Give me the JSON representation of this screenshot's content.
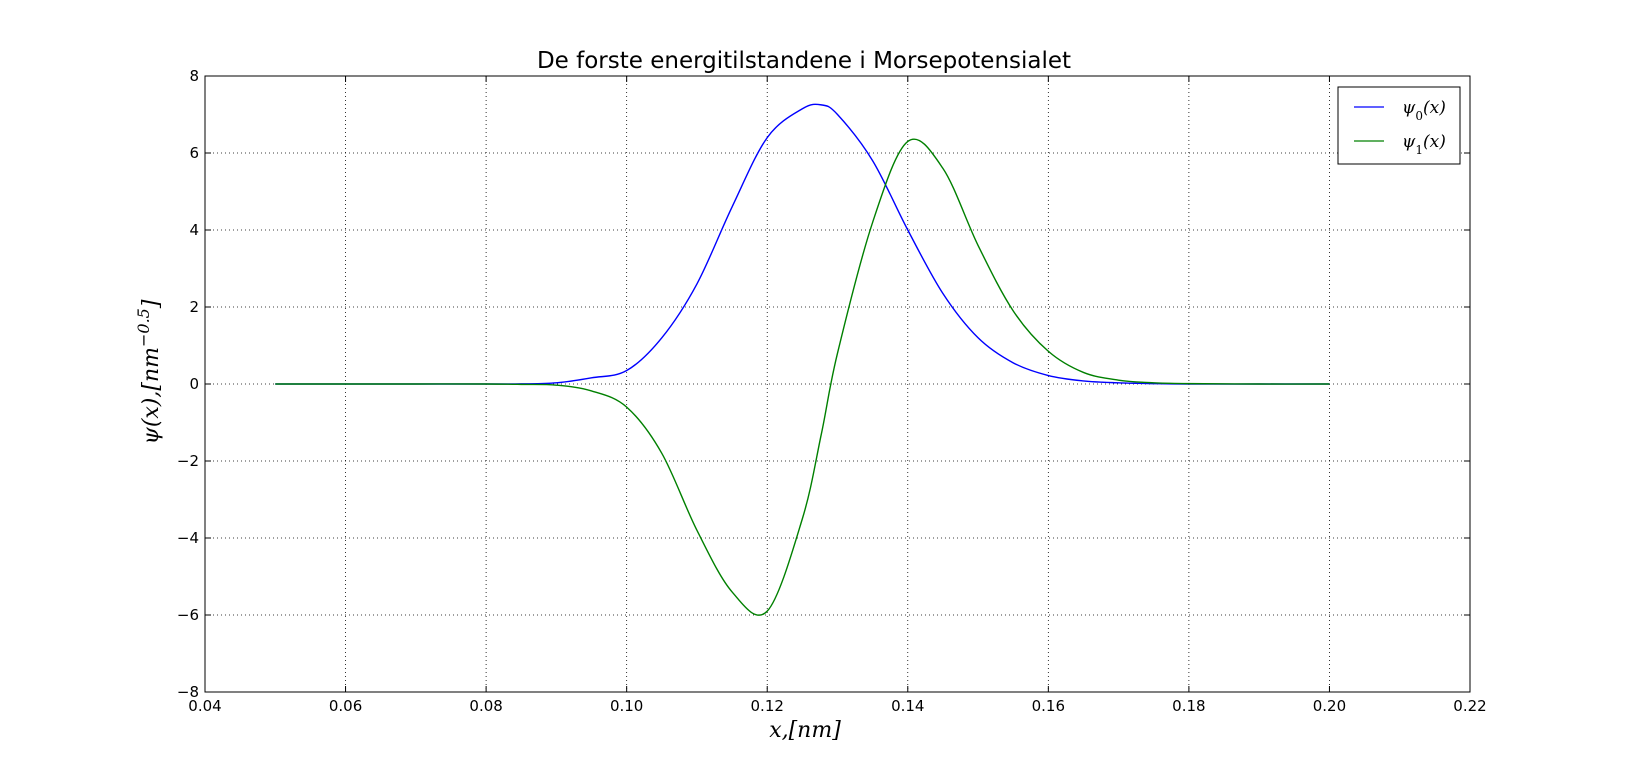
{
  "chart_data": {
    "type": "line",
    "title": "De forste energitilstandene i Morsepotensialet",
    "xlabel": "x,[nm]",
    "ylabel": "ψ(x),[nm^−0.5]",
    "ylabel_parts": {
      "base": "ψ(x),[nm",
      "exponent": "−0.5",
      "close": "]"
    },
    "xlim": [
      0.04,
      0.22
    ],
    "ylim": [
      -8,
      8
    ],
    "xticks": [
      0.04,
      0.06,
      0.08,
      0.1,
      0.12,
      0.14,
      0.16,
      0.18,
      0.2,
      0.22
    ],
    "xtick_labels": [
      "0.04",
      "0.06",
      "0.08",
      "0.10",
      "0.12",
      "0.14",
      "0.16",
      "0.18",
      "0.20",
      "0.22"
    ],
    "yticks": [
      -8,
      -6,
      -4,
      -2,
      0,
      2,
      4,
      6,
      8
    ],
    "ytick_labels": [
      "−8",
      "−6",
      "−4",
      "−2",
      "0",
      "2",
      "4",
      "6",
      "8"
    ],
    "grid": true,
    "legend_position": "top-right",
    "x": [
      0.05,
      0.06,
      0.07,
      0.08,
      0.085,
      0.09,
      0.095,
      0.1,
      0.105,
      0.11,
      0.115,
      0.12,
      0.125,
      0.1277,
      0.13,
      0.135,
      0.14,
      0.145,
      0.15,
      0.155,
      0.16,
      0.165,
      0.17,
      0.175,
      0.18,
      0.19,
      0.2
    ],
    "series": [
      {
        "name": "ψ0(x)",
        "name_symbol": "ψ",
        "name_subscript": "0",
        "name_suffix": "(x)",
        "color": "#0000ff",
        "values": [
          0,
          0,
          0,
          0,
          0.003,
          0.03,
          0.16,
          0.35,
          1.2,
          2.6,
          4.6,
          6.4,
          7.15,
          7.25,
          7.0,
          5.8,
          4.0,
          2.35,
          1.2,
          0.55,
          0.22,
          0.08,
          0.03,
          0.01,
          0.0,
          0,
          0
        ]
      },
      {
        "name": "ψ1(x)",
        "name_symbol": "ψ",
        "name_subscript": "1",
        "name_suffix": "(x)",
        "color": "#008000",
        "values": [
          0,
          0,
          0,
          0,
          -0.01,
          -0.03,
          -0.18,
          -0.6,
          -1.8,
          -3.8,
          -5.4,
          -5.9,
          -3.5,
          -1.3,
          0.8,
          4.2,
          6.3,
          5.6,
          3.6,
          1.9,
          0.85,
          0.3,
          0.1,
          0.03,
          0.01,
          0,
          0
        ]
      }
    ]
  }
}
